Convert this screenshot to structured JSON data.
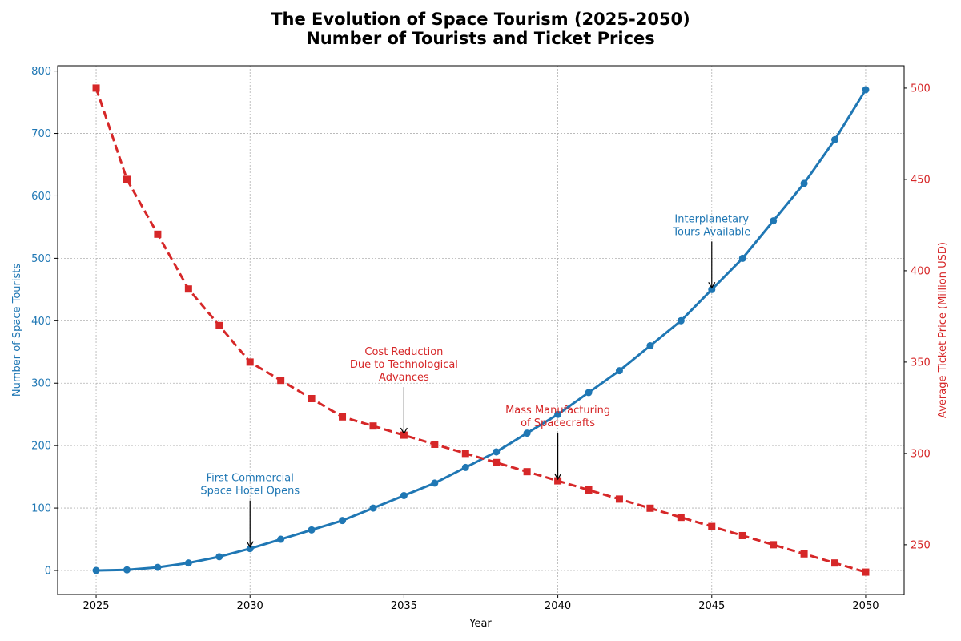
{
  "chart_data": {
    "type": "line",
    "title_line1": "The Evolution of Space Tourism (2025-2050)",
    "title_line2": "Number of Tourists and Ticket Prices",
    "xlabel": "Year",
    "ylabel_left": "Number of Space Tourists",
    "ylabel_right": "Average Ticket Price (Million USD)",
    "xlim": [
      2023.75,
      2051.25
    ],
    "ylim_left": [
      -38.5,
      808.5
    ],
    "ylim_right": [
      222.75,
      512.25
    ],
    "x_ticks": [
      2025,
      2030,
      2035,
      2040,
      2045,
      2050
    ],
    "y_ticks_left": [
      0,
      100,
      200,
      300,
      400,
      500,
      600,
      700,
      800
    ],
    "y_ticks_right": [
      250,
      300,
      350,
      400,
      450,
      500
    ],
    "grid": true,
    "colors": {
      "tourists": "#1f77b4",
      "price": "#d62728"
    },
    "x": [
      2025,
      2026,
      2027,
      2028,
      2029,
      2030,
      2031,
      2032,
      2033,
      2034,
      2035,
      2036,
      2037,
      2038,
      2039,
      2040,
      2041,
      2042,
      2043,
      2044,
      2045,
      2046,
      2047,
      2048,
      2049,
      2050
    ],
    "series": [
      {
        "axis": "left",
        "style": "solid",
        "marker": "circle",
        "values": [
          0,
          1,
          5,
          12,
          22,
          35,
          50,
          65,
          80,
          100,
          120,
          140,
          165,
          190,
          220,
          250,
          285,
          320,
          360,
          400,
          450,
          500,
          560,
          620,
          690,
          770
        ]
      },
      {
        "axis": "right",
        "style": "dashed",
        "marker": "square",
        "values": [
          500,
          450,
          420,
          390,
          370,
          350,
          340,
          330,
          320,
          315,
          310,
          305,
          300,
          295,
          290,
          285,
          280,
          275,
          270,
          265,
          260,
          255,
          250,
          245,
          240,
          235
        ]
      }
    ],
    "annotations": [
      {
        "lines": [
          "First Commercial",
          "Space Hotel Opens"
        ],
        "x": 2030,
        "y": 35,
        "axis": "left",
        "color": "#1f77b4"
      },
      {
        "lines": [
          "Cost Reduction",
          "Due to Technological",
          "Advances"
        ],
        "x": 2035,
        "y": 310,
        "axis": "right",
        "color": "#d62728"
      },
      {
        "lines": [
          "Mass Manufacturing",
          "of Spacecrafts"
        ],
        "x": 2040,
        "y": 285,
        "axis": "right",
        "color": "#d62728"
      },
      {
        "lines": [
          "Interplanetary",
          "Tours Available"
        ],
        "x": 2045,
        "y": 450,
        "axis": "left",
        "color": "#1f77b4"
      }
    ]
  }
}
